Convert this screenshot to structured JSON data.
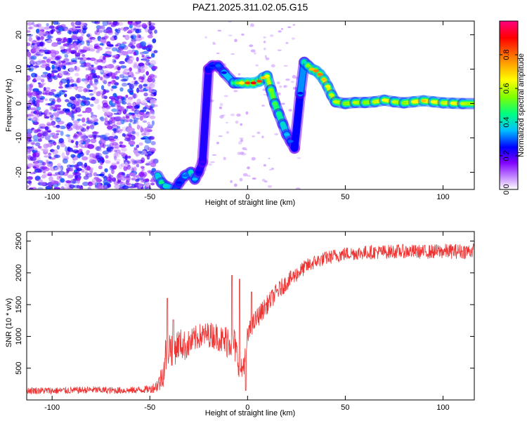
{
  "title": "PAZ1.2025.311.02.05.G15",
  "chart_data": [
    {
      "type": "heatmap",
      "xlabel": "Height of straight line (km)",
      "ylabel": "Frequency (Hz)",
      "xlim": [
        -113,
        116
      ],
      "ylim": [
        -25,
        24
      ],
      "x_ticks": [
        -100,
        -50,
        0,
        50,
        100
      ],
      "y_ticks": [
        -20,
        -10,
        0,
        10,
        20
      ],
      "colorbar": {
        "label": "Normalized spectral amplitude",
        "range": [
          0,
          1
        ],
        "ticks": [
          0.0,
          0.2,
          0.4,
          0.6,
          0.8
        ],
        "colors": [
          "#ffffff",
          "#c080ff",
          "#8000ff",
          "#0000ff",
          "#00c0ff",
          "#00ff80",
          "#80ff00",
          "#ffff00",
          "#ff8000",
          "#ff0000",
          "#ff0080"
        ]
      },
      "noise_region": {
        "x_from": -113,
        "x_to": -47,
        "level": 0.25
      },
      "ridge": [
        {
          "x": -46,
          "y": -21,
          "amp": 0.4
        },
        {
          "x": -44,
          "y": -23,
          "amp": 0.5
        },
        {
          "x": -42,
          "y": -24,
          "amp": 0.45
        },
        {
          "x": -37,
          "y": -25,
          "amp": 0.35
        },
        {
          "x": -35,
          "y": -23,
          "amp": 0.3
        },
        {
          "x": -32,
          "y": -21,
          "amp": 0.35
        },
        {
          "x": -29,
          "y": -20,
          "amp": 0.45
        },
        {
          "x": -27,
          "y": -22,
          "amp": 0.4
        },
        {
          "x": -25,
          "y": -20,
          "amp": 0.3
        },
        {
          "x": -23,
          "y": -17,
          "amp": 0.25
        },
        {
          "x": -20,
          "y": 10,
          "amp": 0.3
        },
        {
          "x": -18,
          "y": 11,
          "amp": 0.3
        },
        {
          "x": -15,
          "y": 11,
          "amp": 0.35
        },
        {
          "x": -12,
          "y": 9,
          "amp": 0.3
        },
        {
          "x": -7,
          "y": 6,
          "amp": 0.5
        },
        {
          "x": -5,
          "y": 6,
          "amp": 0.6
        },
        {
          "x": -3,
          "y": 6,
          "amp": 0.7
        },
        {
          "x": 0,
          "y": 6,
          "amp": 0.85
        },
        {
          "x": 3,
          "y": 6,
          "amp": 0.9
        },
        {
          "x": 6,
          "y": 6.5,
          "amp": 0.85
        },
        {
          "x": 8,
          "y": 7.5,
          "amp": 0.75
        },
        {
          "x": 10,
          "y": 8,
          "amp": 0.7
        },
        {
          "x": 12,
          "y": 4,
          "amp": 0.6
        },
        {
          "x": 14,
          "y": 0,
          "amp": 0.55
        },
        {
          "x": 16,
          "y": -3,
          "amp": 0.5
        },
        {
          "x": 18,
          "y": -6,
          "amp": 0.45
        },
        {
          "x": 20,
          "y": -9,
          "amp": 0.4
        },
        {
          "x": 22,
          "y": -11,
          "amp": 0.35
        },
        {
          "x": 24,
          "y": -13,
          "amp": 0.3
        },
        {
          "x": 27,
          "y": 3,
          "amp": 0.3
        },
        {
          "x": 29,
          "y": 12,
          "amp": 0.45
        },
        {
          "x": 31,
          "y": 11,
          "amp": 0.6
        },
        {
          "x": 33,
          "y": 10,
          "amp": 0.75
        },
        {
          "x": 35,
          "y": 9.5,
          "amp": 0.8
        },
        {
          "x": 37,
          "y": 8.5,
          "amp": 0.8
        },
        {
          "x": 39,
          "y": 7,
          "amp": 0.75
        },
        {
          "x": 41,
          "y": 5,
          "amp": 0.7
        },
        {
          "x": 43,
          "y": 2.5,
          "amp": 0.65
        },
        {
          "x": 45,
          "y": 0.5,
          "amp": 0.65
        },
        {
          "x": 50,
          "y": 0,
          "amp": 0.6
        },
        {
          "x": 55,
          "y": 0.3,
          "amp": 0.65
        },
        {
          "x": 60,
          "y": 0.3,
          "amp": 0.6
        },
        {
          "x": 65,
          "y": 0.5,
          "amp": 0.65
        },
        {
          "x": 70,
          "y": 1,
          "amp": 0.7
        },
        {
          "x": 75,
          "y": 0.5,
          "amp": 0.65
        },
        {
          "x": 80,
          "y": 0.2,
          "amp": 0.6
        },
        {
          "x": 85,
          "y": 0.5,
          "amp": 0.7
        },
        {
          "x": 90,
          "y": 0.8,
          "amp": 0.75
        },
        {
          "x": 95,
          "y": 0.5,
          "amp": 0.7
        },
        {
          "x": 100,
          "y": 0.2,
          "amp": 0.65
        },
        {
          "x": 105,
          "y": 0.1,
          "amp": 0.7
        },
        {
          "x": 110,
          "y": 0,
          "amp": 0.65
        },
        {
          "x": 116,
          "y": 0,
          "amp": 0.6
        }
      ]
    },
    {
      "type": "line",
      "xlabel": "Height of straight line (km)",
      "ylabel": "SNR (10 * v/v)",
      "xlim": [
        -113,
        116
      ],
      "ylim": [
        0,
        2650
      ],
      "x_ticks": [
        -100,
        -50,
        0,
        50,
        100
      ],
      "y_ticks": [
        500,
        1000,
        1500,
        2000,
        2500
      ],
      "color": "#ee3333",
      "series": [
        {
          "name": "SNR",
          "x": [
            -113,
            -100,
            -90,
            -80,
            -70,
            -60,
            -55,
            -50,
            -47,
            -45,
            -43,
            -42,
            -40,
            -38,
            -35,
            -32,
            -30,
            -25,
            -20,
            -15,
            -12,
            -10,
            -7,
            -5,
            -3,
            -1,
            0,
            2,
            5,
            10,
            15,
            20,
            25,
            30,
            35,
            40,
            45,
            50,
            55,
            60,
            70,
            80,
            90,
            100,
            110,
            116
          ],
          "y": [
            150,
            145,
            150,
            160,
            150,
            150,
            160,
            170,
            210,
            280,
            450,
            700,
            850,
            780,
            900,
            850,
            880,
            1000,
            1030,
            1000,
            900,
            980,
            900,
            650,
            450,
            700,
            1000,
            1150,
            1300,
            1500,
            1700,
            1850,
            1980,
            2100,
            2180,
            2230,
            2270,
            2300,
            2310,
            2320,
            2330,
            2340,
            2330,
            2340,
            2340,
            2350
          ],
          "spread": [
            70,
            70,
            70,
            70,
            70,
            70,
            70,
            80,
            120,
            200,
            300,
            400,
            350,
            350,
            300,
            300,
            280,
            250,
            250,
            280,
            300,
            400,
            350,
            300,
            250,
            250,
            220,
            200,
            200,
            190,
            180,
            170,
            160,
            150,
            140,
            140,
            140,
            140,
            140,
            140,
            140,
            140,
            140,
            150,
            150,
            150
          ]
        }
      ],
      "peaks": [
        {
          "x": -41,
          "y": 1600
        },
        {
          "x": -38,
          "y": 1260
        },
        {
          "x": -8,
          "y": 1960
        },
        {
          "x": -4,
          "y": 1900
        },
        {
          "x": -1,
          "y": 150
        },
        {
          "x": 2,
          "y": 1700
        }
      ]
    }
  ]
}
